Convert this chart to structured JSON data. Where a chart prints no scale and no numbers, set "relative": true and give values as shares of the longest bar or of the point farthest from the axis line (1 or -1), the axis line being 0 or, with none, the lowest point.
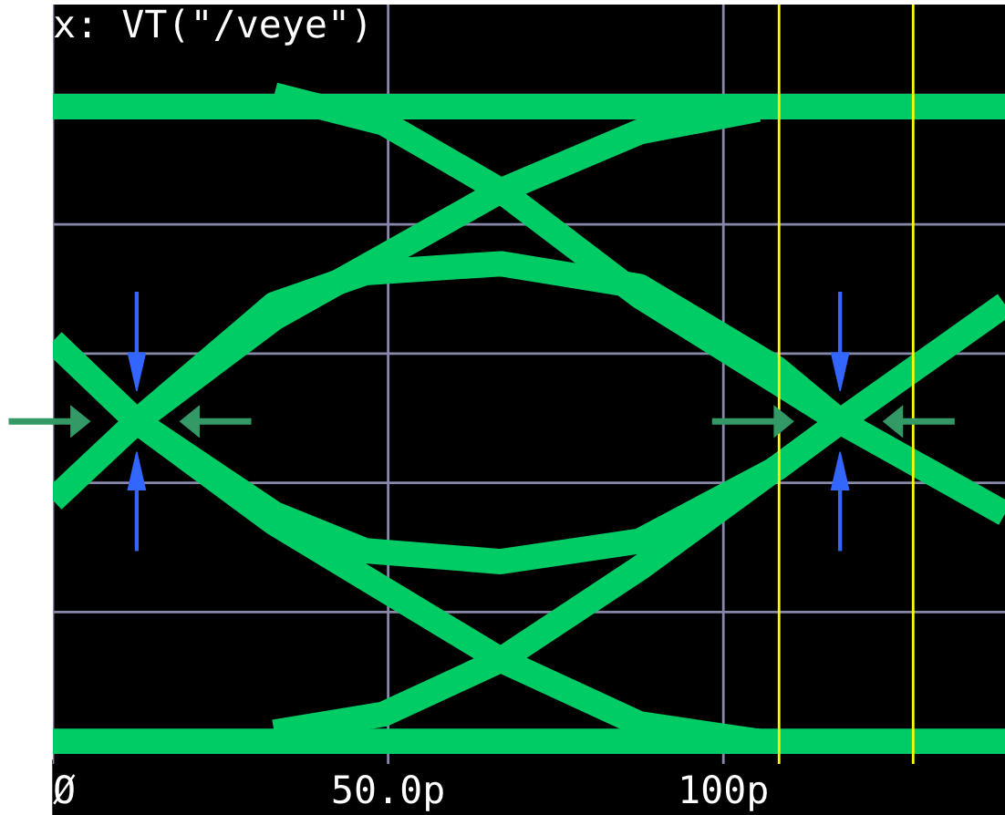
{
  "chart_data": {
    "type": "line",
    "title": "x: VT(\"/veye\")",
    "relative": true,
    "xlim": [
      0,
      142
    ],
    "xticks": [
      {
        "value": 0,
        "label": "Ø"
      },
      {
        "value": 50,
        "label": "50.0p"
      },
      {
        "value": 100,
        "label": "100p"
      }
    ],
    "grid": true,
    "marker": "none",
    "line_style": "solid",
    "ref_lines": [
      {
        "axis": "x",
        "value": 108.3,
        "color": "#ffff00"
      },
      {
        "axis": "x",
        "value": 128.3,
        "color": "#ffff00"
      }
    ],
    "series": [
      {
        "color": "#00cc66",
        "x": [
          0,
          142
        ],
        "values": [
          0.982,
          0.982
        ]
      },
      {
        "color": "#00cc66",
        "x": [
          0,
          142
        ],
        "values": [
          0,
          0
        ]
      },
      {
        "color": "#00cc66",
        "x": [
          0,
          12.5,
          33,
          66.8,
          87.5,
          105.2
        ],
        "values": [
          0.373,
          0.495,
          0.655,
          0.852,
          0.943,
          0.978
        ]
      },
      {
        "color": "#00cc66",
        "x": [
          33,
          49.3,
          66.8,
          87.5,
          117.4,
          142
        ],
        "values": [
          1,
          0.957,
          0.852,
          0.689,
          0.495,
          0.352
        ]
      },
      {
        "color": "#00cc66",
        "x": [
          12.5,
          33,
          46.6,
          66.8,
          87.5,
          107.9,
          117.4
        ],
        "values": [
          0.495,
          0.676,
          0.725,
          0.739,
          0.704,
          0.577,
          0.495
        ]
      },
      {
        "color": "#00cc66",
        "x": [
          0,
          12.5,
          33,
          66.8,
          87.5,
          105.2
        ],
        "values": [
          0.619,
          0.495,
          0.338,
          0.126,
          0.027,
          0
        ]
      },
      {
        "color": "#00cc66",
        "x": [
          33,
          49.3,
          66.8,
          87.5,
          117.4,
          142
        ],
        "values": [
          0.014,
          0.042,
          0.126,
          0.268,
          0.495,
          0.676
        ]
      },
      {
        "color": "#00cc66",
        "x": [
          12.5,
          33,
          46.6,
          66.8,
          87.5,
          107.9,
          117.4
        ],
        "values": [
          0.495,
          0.352,
          0.295,
          0.278,
          0.31,
          0.422,
          0.495
        ]
      }
    ]
  }
}
